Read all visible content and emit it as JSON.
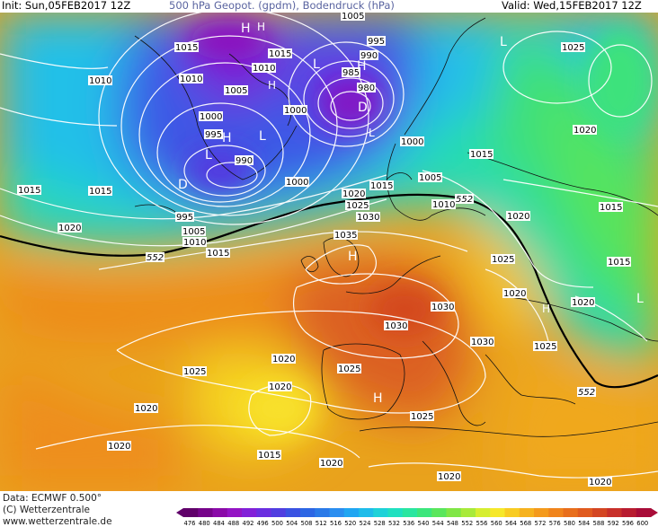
{
  "header": {
    "init": "Init: Sun,05FEB2017 12Z",
    "title": "500 hPa Geopot. (gpdm), Bodendruck (hPa)",
    "valid": "Valid: Wed,15FEB2017 12Z"
  },
  "footer": {
    "data_source": "Data: ECMWF   0.500°",
    "copyright": "(C) Wetterzentrale",
    "website": "www.wetterzentrale.de"
  },
  "legend": {
    "ticks": [
      "476",
      "480",
      "484",
      "488",
      "492",
      "496",
      "500",
      "504",
      "508",
      "512",
      "516",
      "520",
      "524",
      "528",
      "532",
      "536",
      "540",
      "544",
      "548",
      "552",
      "556",
      "560",
      "564",
      "568",
      "572",
      "576",
      "580",
      "584",
      "588",
      "592",
      "596",
      "600"
    ],
    "colors": [
      "#60006a",
      "#76048a",
      "#8a0aa8",
      "#9414c4",
      "#8220d8",
      "#6a2ee0",
      "#503ee0",
      "#3a52e2",
      "#2c66e4",
      "#2a7ae8",
      "#2a8ef0",
      "#20a6f2",
      "#1ebcea",
      "#1ed2d8",
      "#20e0c0",
      "#2ae6a0",
      "#3ce67c",
      "#5ae65c",
      "#80e646",
      "#a8ea3a",
      "#d6ee30",
      "#f6e82a",
      "#f8cc22",
      "#f6b21e",
      "#f49a1c",
      "#f0841c",
      "#e86e1c",
      "#e05a1e",
      "#d44622",
      "#c8302a",
      "#b81c30",
      "#a80c38"
    ]
  },
  "map": {
    "isobar_labels": [
      {
        "text": "1005"
      },
      {
        "text": "1015"
      },
      {
        "text": "1010"
      },
      {
        "text": "1015"
      },
      {
        "text": "1010"
      },
      {
        "text": "1010"
      },
      {
        "text": "1005"
      },
      {
        "text": "1000"
      },
      {
        "text": "995"
      },
      {
        "text": "990"
      },
      {
        "text": "1000"
      },
      {
        "text": "1000"
      },
      {
        "text": "1015"
      },
      {
        "text": "995"
      },
      {
        "text": "995"
      },
      {
        "text": "990"
      },
      {
        "text": "985"
      },
      {
        "text": "980"
      },
      {
        "text": "1000"
      },
      {
        "text": "1015"
      },
      {
        "text": "1005"
      },
      {
        "text": "1015"
      },
      {
        "text": "1020"
      },
      {
        "text": "1025"
      },
      {
        "text": "1030"
      },
      {
        "text": "1010"
      },
      {
        "text": "1015"
      },
      {
        "text": "1020"
      },
      {
        "text": "1010"
      },
      {
        "text": "1005"
      },
      {
        "text": "1015"
      },
      {
        "text": "1035"
      },
      {
        "text": "1020"
      },
      {
        "text": "1025"
      },
      {
        "text": "1015"
      },
      {
        "text": "1020"
      },
      {
        "text": "1025"
      },
      {
        "text": "1020"
      },
      {
        "text": "1030"
      },
      {
        "text": "1030"
      },
      {
        "text": "1030"
      },
      {
        "text": "1025"
      },
      {
        "text": "1025"
      },
      {
        "text": "1020"
      },
      {
        "text": "1025"
      },
      {
        "text": "1020"
      },
      {
        "text": "1020"
      },
      {
        "text": "1020"
      },
      {
        "text": "1015"
      },
      {
        "text": "1020"
      },
      {
        "text": "1025"
      },
      {
        "text": "1020"
      },
      {
        "text": "1020"
      },
      {
        "text": "1015"
      },
      {
        "text": "1020"
      }
    ],
    "geopotential_labels": [
      {
        "text": "552"
      },
      {
        "text": "552"
      },
      {
        "text": "552"
      }
    ],
    "pressure_centers": [
      {
        "text": "H"
      },
      {
        "text": "H"
      },
      {
        "text": "H"
      },
      {
        "text": "H"
      },
      {
        "text": "H"
      },
      {
        "text": "H"
      },
      {
        "text": "H"
      },
      {
        "text": "H"
      },
      {
        "text": "L"
      },
      {
        "text": "D"
      },
      {
        "text": "D"
      },
      {
        "text": "L"
      },
      {
        "text": "L"
      },
      {
        "text": "L"
      },
      {
        "text": "L"
      },
      {
        "text": "L"
      }
    ]
  }
}
